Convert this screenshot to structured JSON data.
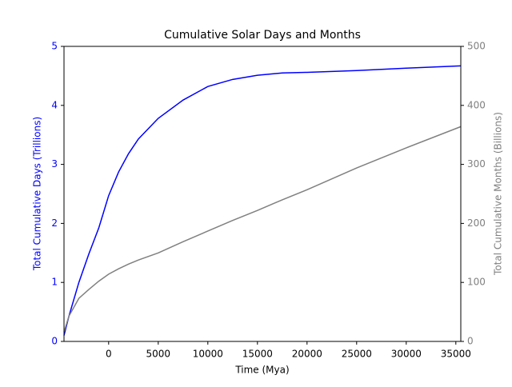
{
  "chart_data": {
    "type": "line",
    "title": "Cumulative Solar Days and Months",
    "xlabel": "Time (Mya)",
    "ylabel": "Total Cumulative Days (Trillions)",
    "y2label": "Total Cumulative Months (Billions)",
    "x": [
      -4500,
      -4000,
      -3000,
      -2000,
      -1000,
      0,
      1000,
      2000,
      3000,
      5000,
      7500,
      10000,
      12500,
      15000,
      17500,
      20000,
      25000,
      30000,
      35500
    ],
    "series": [
      {
        "name": "Total Cumulative Days (Trillions)",
        "color": "#0000ff",
        "axis": "y",
        "values": [
          0.1,
          0.43,
          1.0,
          1.48,
          1.92,
          2.47,
          2.87,
          3.18,
          3.43,
          3.78,
          4.09,
          4.32,
          4.44,
          4.51,
          4.55,
          4.56,
          4.59,
          4.63,
          4.67
        ]
      },
      {
        "name": "Total Cumulative Months (Billions)",
        "color": "#808080",
        "axis": "y2",
        "values": [
          16,
          43,
          73,
          88,
          102,
          114,
          123,
          131,
          138,
          150,
          169,
          187,
          205,
          222,
          240,
          257,
          294,
          328,
          364
        ]
      }
    ],
    "xlim": [
      -4500,
      35500
    ],
    "xticks": [
      0,
      5000,
      10000,
      15000,
      20000,
      25000,
      30000,
      35000
    ],
    "ylim": [
      0,
      5
    ],
    "yticks": [
      0,
      1,
      2,
      3,
      4,
      5
    ],
    "y2lim": [
      0,
      500
    ],
    "y2ticks": [
      0,
      100,
      200,
      300,
      400,
      500
    ]
  }
}
